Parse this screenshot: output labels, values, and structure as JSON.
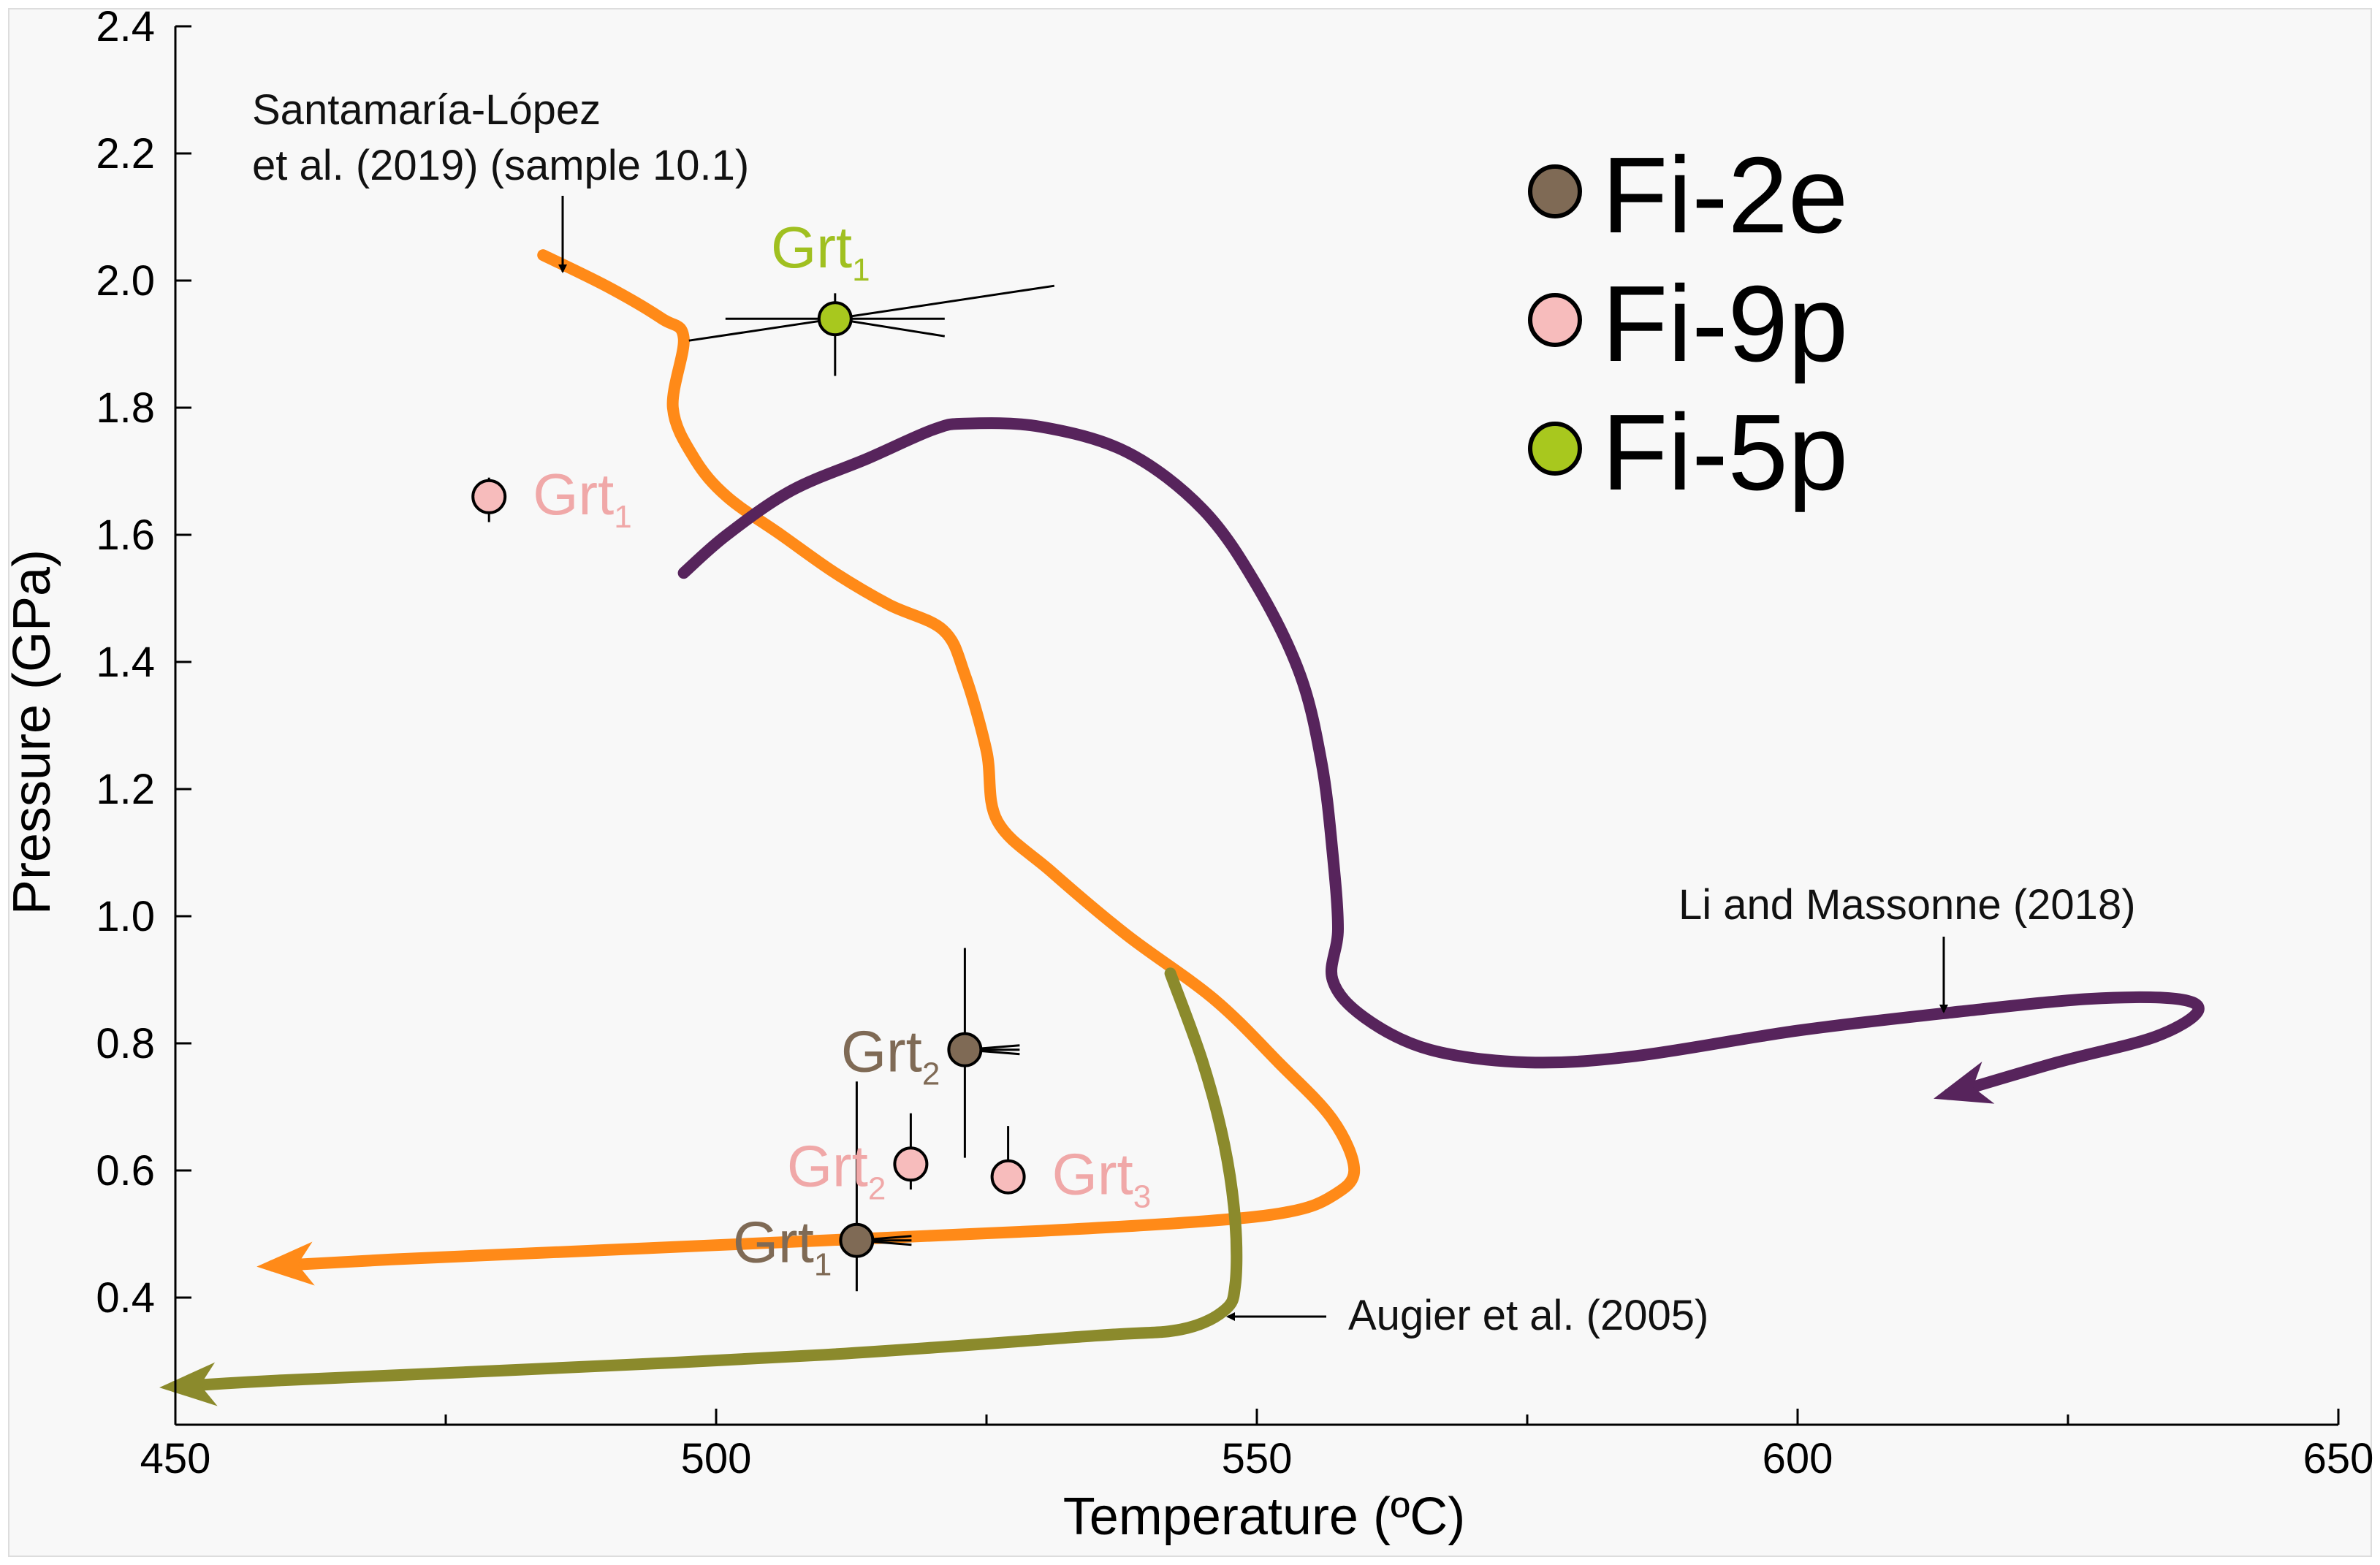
{
  "chart_data": {
    "type": "scatter",
    "title": "",
    "xlabel": "Temperature (ºC)",
    "ylabel": "Pressure (GPa)",
    "xlim": [
      450,
      650
    ],
    "ylim": [
      0.2,
      2.4
    ],
    "x_ticks": [
      450,
      500,
      550,
      600,
      650
    ],
    "x_tick_labels": [
      "450",
      "500",
      "550",
      "600",
      "650"
    ],
    "y_ticks": [
      0.4,
      0.6,
      0.8,
      1.0,
      1.2,
      1.4,
      1.6,
      1.8,
      2.0,
      2.2,
      2.4
    ],
    "y_tick_labels": [
      "0.4",
      "0.6",
      "0.8",
      "1.0",
      "1.2",
      "1.4",
      "1.6",
      "1.8",
      "2.0",
      "2.2",
      "2.4"
    ],
    "grid": false,
    "legend_position": "top-right",
    "legend": [
      {
        "label": "Fi-2e",
        "color": "#7f6a55"
      },
      {
        "label": "Fi-9p",
        "color": "#f7bcbc"
      },
      {
        "label": "Fi-5p",
        "color": "#a8c81e"
      }
    ],
    "series": [
      {
        "name": "Fi-2e",
        "color": "#7f6a55",
        "label_color": "#7f6a55",
        "points": [
          {
            "label": "Grt",
            "sub": "1",
            "x": 513,
            "y": 0.49,
            "ylo": 0.41,
            "yhi": 0.74,
            "label_side": "left"
          },
          {
            "label": "Grt",
            "sub": "2",
            "x": 523,
            "y": 0.79,
            "ylo": 0.62,
            "yhi": 0.95,
            "label_side": "left"
          }
        ]
      },
      {
        "name": "Fi-9p",
        "color": "#f7bcbc",
        "label_color": "#f0a8a8",
        "points": [
          {
            "label": "Grt",
            "sub": "1",
            "x": 479,
            "y": 1.66,
            "ylo": 1.62,
            "yhi": 1.69,
            "label_side": "right"
          },
          {
            "label": "Grt",
            "sub": "2",
            "x": 518,
            "y": 0.61,
            "ylo": 0.57,
            "yhi": 0.69,
            "label_side": "left"
          },
          {
            "label": "Grt",
            "sub": "3",
            "x": 527,
            "y": 0.59,
            "ylo": 0.59,
            "yhi": 0.67,
            "label_side": "right"
          }
        ]
      },
      {
        "name": "Fi-5p",
        "color": "#a8c81e",
        "label_color": "#a0c020",
        "points": [
          {
            "label": "Grt",
            "sub": "1",
            "x": 511,
            "y": 1.94,
            "ylo": 1.85,
            "yhi": 1.98,
            "label_side": "above"
          }
        ]
      }
    ],
    "paths": [
      {
        "name": "Santamaría-López et al. (2019) (sample 10.1)",
        "color": "#ff8a18",
        "points": [
          [
            484,
            2.04
          ],
          [
            490,
            1.99
          ],
          [
            495,
            1.94
          ],
          [
            497,
            1.91
          ],
          [
            496,
            1.8
          ],
          [
            498,
            1.72
          ],
          [
            501,
            1.66
          ],
          [
            506,
            1.6
          ],
          [
            511,
            1.54
          ],
          [
            516,
            1.49
          ],
          [
            521,
            1.45
          ],
          [
            523,
            1.38
          ],
          [
            525,
            1.26
          ],
          [
            526,
            1.15
          ],
          [
            531,
            1.07
          ],
          [
            538,
            0.97
          ],
          [
            546,
            0.87
          ],
          [
            552,
            0.77
          ],
          [
            557,
            0.68
          ],
          [
            559,
            0.6
          ],
          [
            557,
            0.56
          ],
          [
            553,
            0.535
          ],
          [
            545,
            0.52
          ],
          [
            530,
            0.505
          ],
          [
            510,
            0.49
          ],
          [
            490,
            0.475
          ],
          [
            470,
            0.46
          ],
          [
            459,
            0.45
          ]
        ]
      },
      {
        "name": "Li and Massonne (2018)",
        "color": "#57245c",
        "points": [
          [
            497,
            1.54
          ],
          [
            501,
            1.6
          ],
          [
            507,
            1.67
          ],
          [
            514,
            1.72
          ],
          [
            520,
            1.765
          ],
          [
            523,
            1.775
          ],
          [
            530,
            1.77
          ],
          [
            538,
            1.73
          ],
          [
            545,
            1.64
          ],
          [
            550,
            1.52
          ],
          [
            554,
            1.38
          ],
          [
            556,
            1.24
          ],
          [
            557,
            1.1
          ],
          [
            557.5,
            0.98
          ],
          [
            557,
            0.9
          ],
          [
            560,
            0.84
          ],
          [
            566,
            0.79
          ],
          [
            575,
            0.77
          ],
          [
            585,
            0.78
          ],
          [
            600,
            0.82
          ],
          [
            615,
            0.85
          ],
          [
            627,
            0.87
          ],
          [
            635,
            0.87
          ],
          [
            637,
            0.85
          ],
          [
            633,
            0.81
          ],
          [
            624,
            0.77
          ],
          [
            614,
            0.72
          ]
        ]
      },
      {
        "name": "Augier et al. (2005)",
        "color": "#8b8a2c",
        "points": [
          [
            542,
            0.91
          ],
          [
            545,
            0.77
          ],
          [
            547,
            0.64
          ],
          [
            548,
            0.52
          ],
          [
            548,
            0.42
          ],
          [
            547,
            0.38
          ],
          [
            543,
            0.35
          ],
          [
            535,
            0.34
          ],
          [
            510,
            0.31
          ],
          [
            480,
            0.285
          ],
          [
            460,
            0.27
          ],
          [
            450,
            0.26
          ]
        ]
      }
    ],
    "annotations": [
      {
        "name": "santamaria-lopez",
        "lines": [
          "Santamaría-López",
          "et al. (2019) (sample 10.1)"
        ]
      },
      {
        "name": "li-massonne",
        "lines": [
          "Li and Massonne (2018)"
        ]
      },
      {
        "name": "augier",
        "lines": [
          "Augier et al. (2005)"
        ]
      }
    ]
  }
}
